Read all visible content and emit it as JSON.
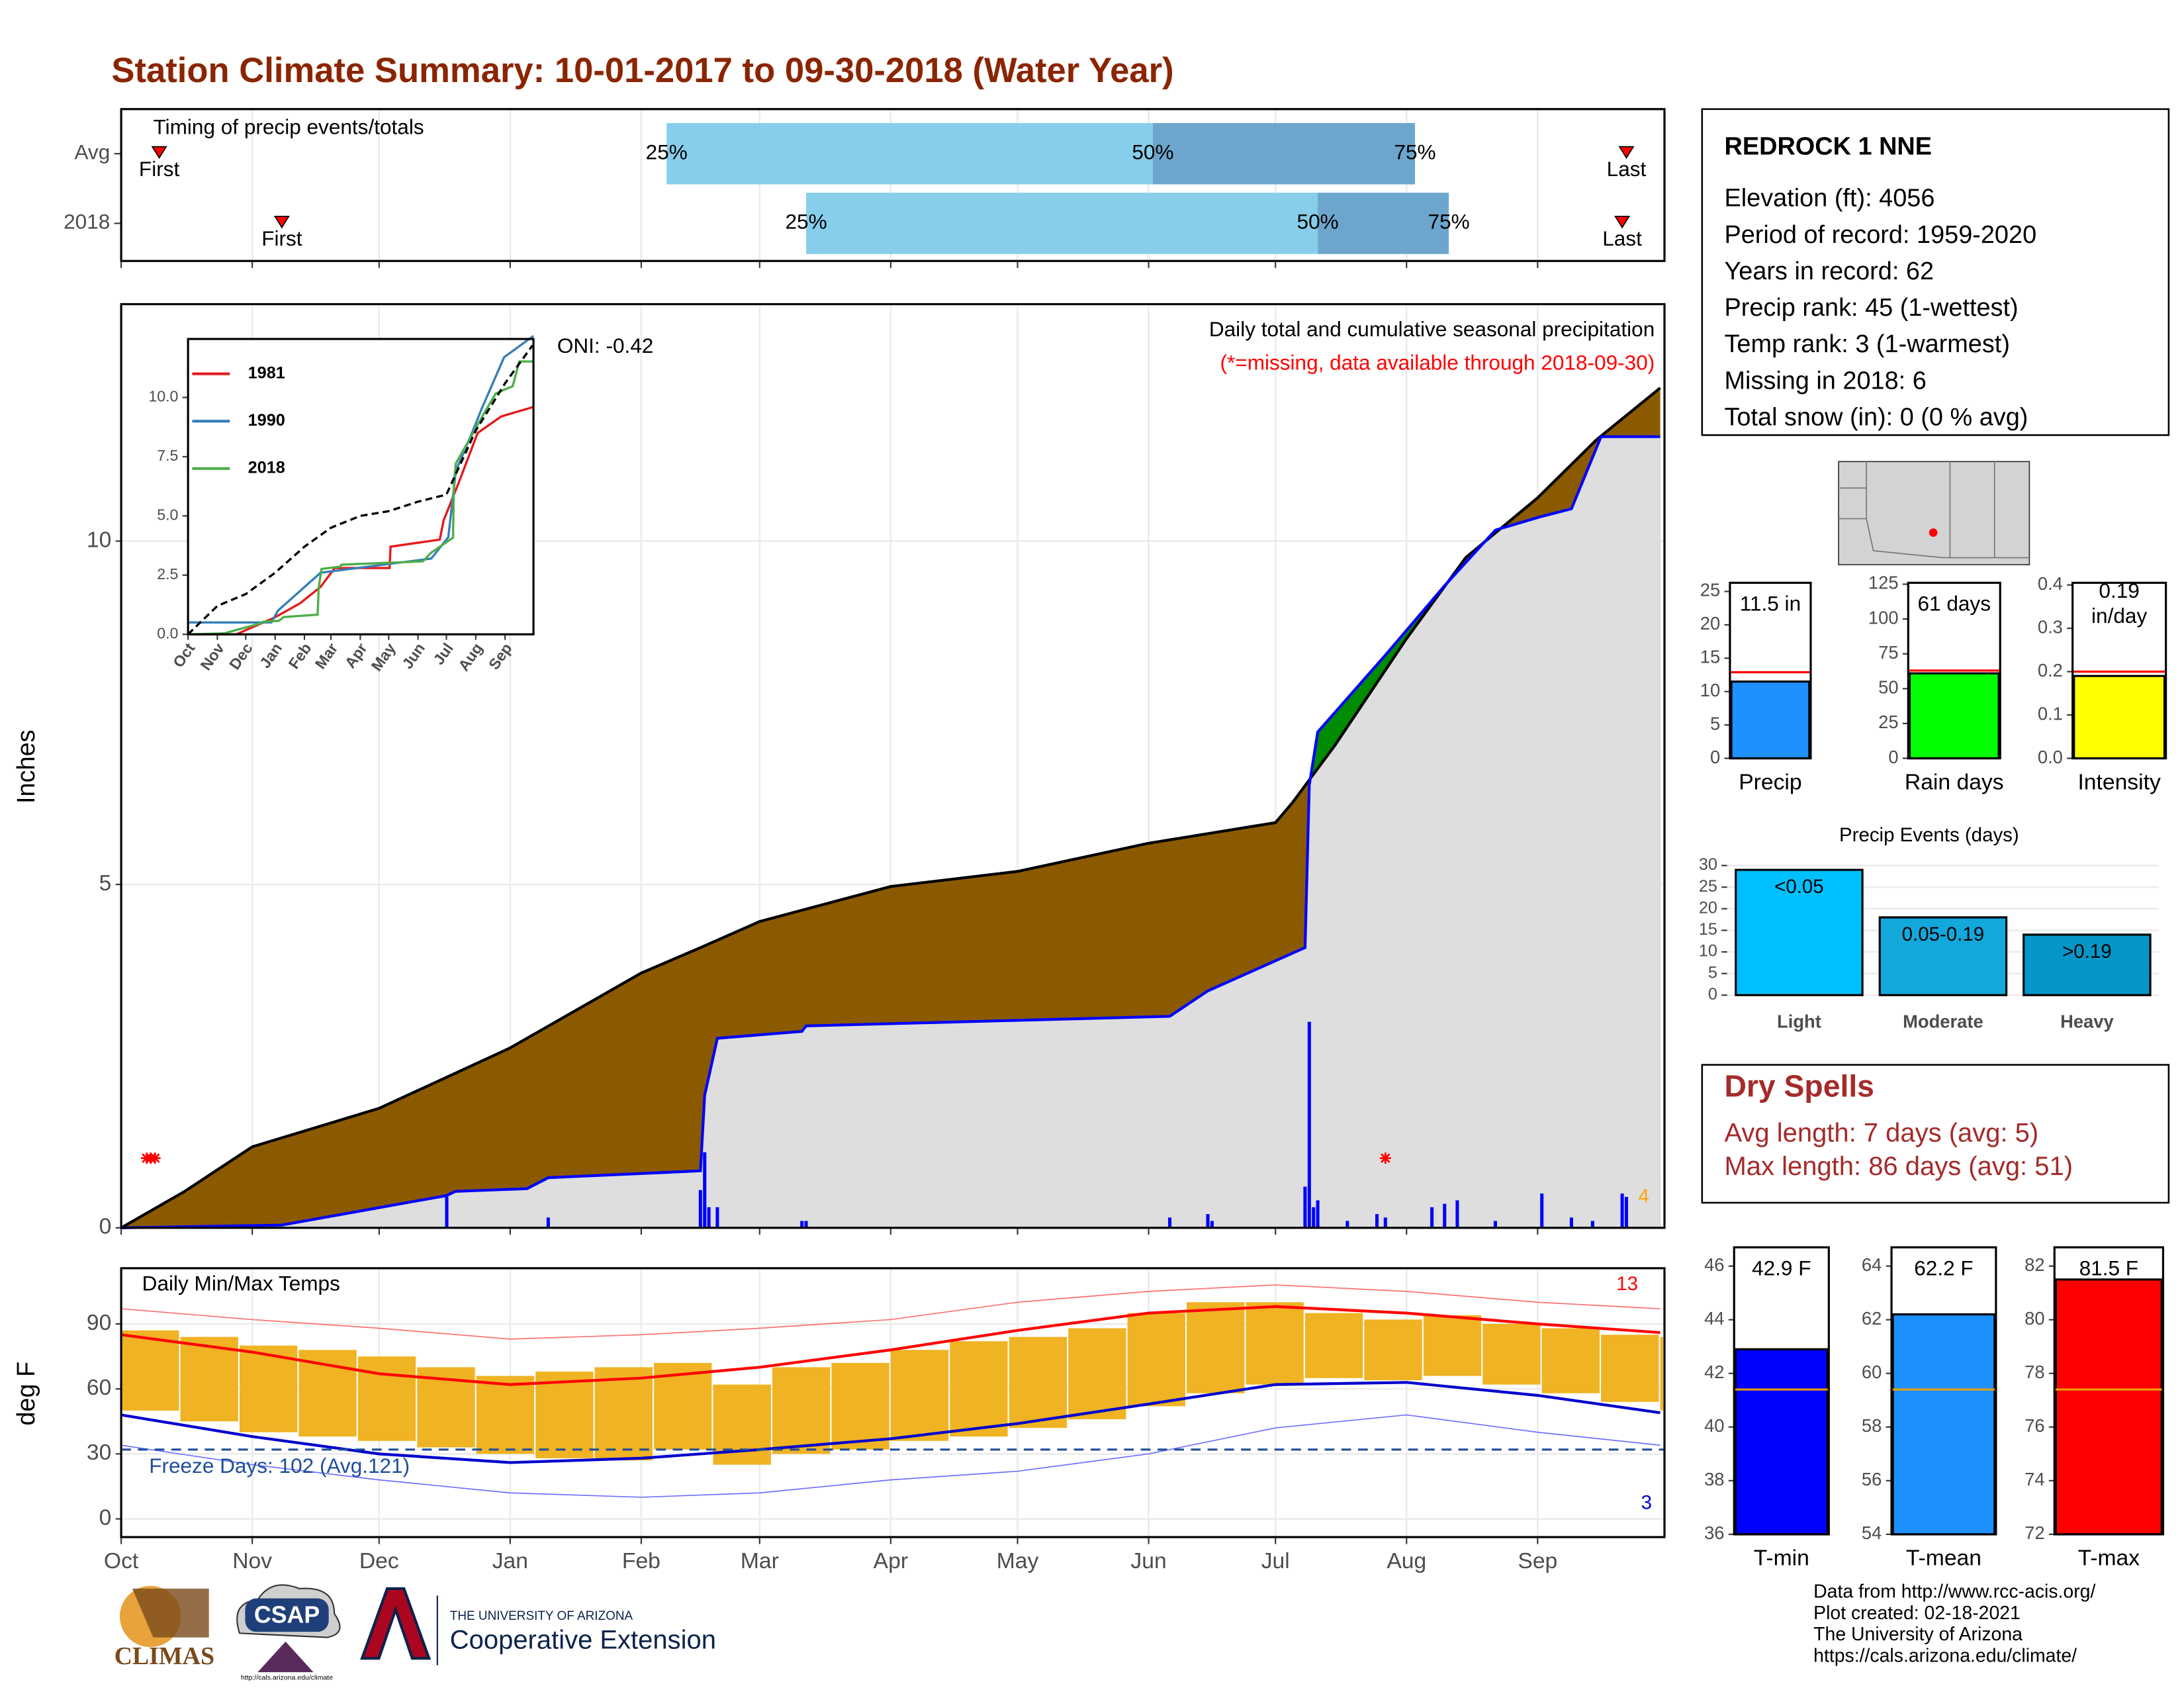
{
  "title": "Station Climate Summary: 10-01-2017 to 09-30-2018 (Water Year)",
  "station": {
    "name": "REDROCK 1 NNE",
    "lines": [
      "Elevation (ft): 4056",
      "Period of record: 1959-2020",
      "Years in record: 62",
      "Precip rank: 45 (1-wettest)",
      "Temp rank: 3 (1-warmest)",
      "Missing in 2018: 6",
      "Total snow (in): 0 (0 % avg)"
    ]
  },
  "dry_spells": {
    "title": "Dry Spells",
    "lines": [
      "Avg length: 7 days (avg: 5)",
      "Max length: 86 days (avg: 51)"
    ]
  },
  "footer": {
    "lines": [
      "Data from http://www.rcc-acis.org/",
      "Plot created: 02-18-2021",
      "The University of Arizona",
      "https://cals.arizona.edu/climate/"
    ]
  },
  "logos": {
    "climas": "CLIMAS",
    "csap": "CSAP",
    "csap_url": "http://cals.arizona.edu/climate",
    "ua": "THE UNIVERSITY OF ARIZONA",
    "coop": "Cooperative Extension"
  },
  "chart_data": [
    {
      "type": "timing",
      "title": "Timing of precip events/totals",
      "categories": [
        "Avg",
        "2018"
      ],
      "series": [
        {
          "name": "First",
          "values": [
            9,
            38
          ]
        },
        {
          "name": "25%",
          "values": [
            129,
            162
          ]
        },
        {
          "name": "50%",
          "values": [
            244,
            283
          ]
        },
        {
          "name": "75%",
          "values": [
            306,
            314
          ]
        },
        {
          "name": "Last",
          "values": [
            356,
            355
          ]
        }
      ],
      "colors": [
        "#87ceeb",
        "#6ca6cd"
      ],
      "xlim": [
        0,
        365
      ],
      "xticks": [
        0,
        31,
        61,
        92,
        123,
        151,
        182,
        212,
        243,
        273,
        304,
        335
      ],
      "grid": true
    },
    {
      "type": "cumulative",
      "title": "Daily total and cumulative seasonal precipitation",
      "subtitle": "(*=missing, data available through 2018-09-30)",
      "ylabel": "Inches",
      "annotations": [
        "ONI: -0.42",
        "4"
      ],
      "average": {
        "color": "#8b5a00",
        "x": [
          0,
          15,
          31,
          61,
          92,
          123,
          137,
          151,
          182,
          212,
          243,
          273,
          277,
          287,
          304,
          318,
          335,
          349,
          364
        ],
        "values": [
          0,
          0.53,
          1.18,
          1.74,
          2.62,
          3.71,
          4.08,
          4.46,
          4.97,
          5.19,
          5.6,
          5.9,
          6.19,
          7.02,
          8.58,
          9.76,
          10.63,
          11.48,
          12.23
        ]
      },
      "year": {
        "color": "#0000ff",
        "fill": "#dedede",
        "above_color": "#008b00",
        "x": [
          0,
          38,
          77,
          79,
          96,
          101,
          137,
          138,
          141,
          161,
          162,
          248,
          257,
          280,
          281,
          283,
          299,
          313,
          325,
          336,
          343,
          350,
          364
        ],
        "values": [
          0,
          0.04,
          0.47,
          0.53,
          0.57,
          0.73,
          0.83,
          1.93,
          2.76,
          2.86,
          2.94,
          3.08,
          3.45,
          4.08,
          6.45,
          7.22,
          8.34,
          9.35,
          10.16,
          10.36,
          10.47,
          11.52,
          11.52
        ]
      },
      "daily": {
        "color": "#0000ff",
        "x": [
          77,
          101,
          137,
          138,
          139,
          141,
          161,
          162,
          248,
          257,
          258,
          280,
          281,
          282,
          283,
          290,
          297,
          299,
          310,
          313,
          316,
          325,
          336,
          343,
          348,
          355,
          356
        ],
        "values": [
          0.45,
          0.15,
          0.55,
          1.1,
          0.3,
          0.3,
          0.1,
          0.1,
          0.15,
          0.2,
          0.1,
          0.6,
          3.0,
          0.3,
          0.4,
          0.1,
          0.2,
          0.15,
          0.3,
          0.35,
          0.4,
          0.1,
          0.5,
          0.15,
          0.1,
          0.5,
          0.45
        ]
      },
      "missing_x": [
        6,
        7,
        8,
        299
      ],
      "xlim": [
        0,
        365
      ],
      "xticks": [
        0,
        31,
        61,
        92,
        123,
        151,
        182,
        212,
        243,
        273,
        304,
        335
      ],
      "ylim": [
        0,
        13.45
      ],
      "yticks": [
        0,
        5,
        10
      ],
      "grid": true
    },
    {
      "type": "line",
      "xlim": [
        0,
        365
      ],
      "ylim": [
        0,
        12.47
      ],
      "xticks": [
        {
          "value": 0,
          "label": "Oct"
        },
        {
          "value": 31,
          "label": "Nov"
        },
        {
          "value": 61,
          "label": "Dec"
        },
        {
          "value": 92,
          "label": "Jan"
        },
        {
          "value": 123,
          "label": "Feb"
        },
        {
          "value": 151,
          "label": "Mar"
        },
        {
          "value": 182,
          "label": "Apr"
        },
        {
          "value": 212,
          "label": "May"
        },
        {
          "value": 243,
          "label": "Jun"
        },
        {
          "value": 273,
          "label": "Jul"
        },
        {
          "value": 304,
          "label": "Aug"
        },
        {
          "value": 335,
          "label": "Sep"
        }
      ],
      "yticks": [
        {
          "value": 0,
          "label": "0.0"
        },
        2.5,
        {
          "value": 5,
          "label": "5.0"
        },
        7.5,
        {
          "value": 10,
          "label": "10.0"
        }
      ],
      "series": [
        {
          "name": "1981",
          "color": "#e41a1c",
          "x": [
            0,
            51,
            91,
            118,
            140,
            155,
            213,
            214,
            266,
            270,
            287,
            306,
            331,
            365
          ],
          "values": [
            0,
            0,
            0.7,
            1.3,
            2.0,
            2.8,
            2.8,
            3.7,
            4.0,
            4.8,
            6.5,
            8.5,
            9.2,
            9.6
          ]
        },
        {
          "name": "1990",
          "color": "#377eb8",
          "x": [
            0,
            88,
            95,
            140,
            257,
            275,
            283,
            300,
            310,
            334,
            365
          ],
          "values": [
            0.5,
            0.5,
            1.0,
            2.6,
            3.2,
            4.1,
            6.9,
            8.5,
            9.5,
            11.7,
            12.6
          ]
        },
        {
          "name": "2018",
          "color": "#4daf4a",
          "x": [
            0,
            38,
            77,
            79,
            96,
            101,
            137,
            138,
            141,
            161,
            162,
            248,
            257,
            280,
            281,
            283,
            299,
            313,
            325,
            336,
            343,
            350,
            364
          ],
          "values": [
            0,
            0.04,
            0.47,
            0.53,
            0.57,
            0.73,
            0.83,
            1.93,
            2.76,
            2.86,
            2.94,
            3.08,
            3.45,
            4.08,
            6.45,
            7.22,
            8.34,
            9.35,
            10.16,
            10.36,
            10.47,
            11.52,
            11.52
          ]
        },
        {
          "color": "#000000",
          "dash": true,
          "x": [
            0,
            31,
            61,
            92,
            123,
            151,
            182,
            212,
            243,
            273,
            304,
            335,
            364
          ],
          "values": [
            0,
            1.2,
            1.7,
            2.6,
            3.7,
            4.5,
            5.0,
            5.2,
            5.6,
            5.9,
            8.6,
            10.6,
            12.2
          ]
        }
      ]
    },
    {
      "type": "temperature",
      "title": "Daily Min/Max Temps",
      "ylabel": "deg F",
      "annotations": [
        "13",
        "3",
        "Freeze Days: 102 (Avg.121)"
      ],
      "freeze": 32,
      "xlim": [
        0,
        365
      ],
      "ylim": [
        -8.4,
        115.7
      ],
      "yticks": [
        0,
        30,
        60,
        90
      ],
      "grid": true,
      "xticks": [
        {
          "value": 0,
          "label": "Oct"
        },
        {
          "value": 31,
          "label": "Nov"
        },
        {
          "value": 61,
          "label": "Dec"
        },
        {
          "value": 92,
          "label": "Jan"
        },
        {
          "value": 123,
          "label": "Feb"
        },
        {
          "value": 151,
          "label": "Mar"
        },
        {
          "value": 182,
          "label": "Apr"
        },
        {
          "value": 212,
          "label": "May"
        },
        {
          "value": 243,
          "label": "Jun"
        },
        {
          "value": 273,
          "label": "Jul"
        },
        {
          "value": 304,
          "label": "Aug"
        },
        {
          "value": 335,
          "label": "Sep"
        }
      ],
      "x_daily": [
        0,
        14,
        28,
        42,
        56,
        70,
        84,
        98,
        112,
        126,
        140,
        154,
        168,
        182,
        196,
        210,
        224,
        238,
        252,
        266,
        280,
        294,
        308,
        322,
        336,
        350,
        364
      ],
      "daily_max": [
        87,
        84,
        80,
        78,
        75,
        70,
        66,
        68,
        70,
        72,
        62,
        70,
        72,
        78,
        82,
        84,
        88,
        95,
        100,
        100,
        95,
        92,
        94,
        90,
        88,
        85,
        84
      ],
      "daily_min": [
        50,
        45,
        40,
        38,
        36,
        33,
        30,
        28,
        27,
        32,
        25,
        30,
        32,
        36,
        38,
        42,
        46,
        52,
        58,
        62,
        65,
        64,
        66,
        62,
        58,
        54,
        50
      ],
      "bar_color": "#f0b323",
      "x_monthly": [
        0,
        31,
        61,
        92,
        123,
        151,
        182,
        212,
        243,
        273,
        304,
        335,
        364
      ],
      "avg_max": [
        85,
        77,
        67,
        62,
        65,
        70,
        78,
        87,
        95,
        98,
        95,
        90,
        86
      ],
      "avg_min": [
        48,
        38,
        30,
        26,
        28,
        32,
        37,
        44,
        53,
        62,
        63,
        57,
        49
      ],
      "record_max": [
        97,
        92,
        88,
        83,
        85,
        88,
        92,
        100,
        105,
        108,
        105,
        100,
        97
      ],
      "record_min": [
        34,
        25,
        18,
        12,
        10,
        12,
        18,
        22,
        30,
        42,
        48,
        40,
        34
      ]
    },
    {
      "type": "single_bar",
      "xlabel": "Precip",
      "values": [
        11.5
      ],
      "value_labels": [
        "11.5 in"
      ],
      "average": 12.9,
      "color": "#1e90ff",
      "ylim": [
        0,
        26.3
      ],
      "yticks": [
        0,
        5,
        10,
        15,
        20,
        25
      ]
    },
    {
      "type": "single_bar",
      "xlabel": "Rain days",
      "values": [
        61
      ],
      "value_labels": [
        "61 days"
      ],
      "average": 63,
      "color": "#00ff00",
      "ylim": [
        0,
        126
      ],
      "yticks": [
        0,
        25,
        50,
        75,
        100,
        125
      ]
    },
    {
      "type": "single_bar",
      "xlabel": "Intensity",
      "values": [
        0.19
      ],
      "value_labels": [
        "0.19\nin/day"
      ],
      "average": 0.2,
      "color": "#ffff00",
      "ylim": [
        0,
        0.405
      ],
      "yticks": [
        {
          "value": 0,
          "label": "0.0"
        },
        0.1,
        0.2,
        0.3,
        0.4
      ]
    },
    {
      "type": "bar",
      "title": "Precip Events (days)",
      "categories": [
        "Light",
        "Moderate",
        "Heavy"
      ],
      "values": [
        29,
        18,
        14
      ],
      "bar_labels": [
        "<0.05",
        "0.05-0.19",
        ">0.19"
      ],
      "colors": [
        "#00bfff",
        "#12a8dc",
        "#0596c8"
      ],
      "ylim": [
        -1.3,
        31.6
      ],
      "yticks": [
        0,
        5,
        10,
        15,
        20,
        25,
        30
      ],
      "grid": true
    },
    {
      "type": "single_bar",
      "xlabel": "T-min",
      "values": [
        42.9
      ],
      "value_labels": [
        "42.9 F"
      ],
      "average": 41.4,
      "color": "#0000ff",
      "ylim": [
        36,
        46.7
      ],
      "yticks": [
        36,
        38,
        40,
        42,
        44,
        46
      ]
    },
    {
      "type": "single_bar",
      "xlabel": "T-mean",
      "values": [
        62.2
      ],
      "value_labels": [
        "62.2 F"
      ],
      "average": 59.4,
      "color": "#1e90ff",
      "ylim": [
        54,
        64.7
      ],
      "yticks": [
        54,
        56,
        58,
        60,
        62,
        64
      ]
    },
    {
      "type": "single_bar",
      "xlabel": "T-max",
      "values": [
        81.5
      ],
      "value_labels": [
        "81.5 F"
      ],
      "average": 77.4,
      "color": "#ff0000",
      "ylim": [
        72,
        82.7
      ],
      "yticks": [
        72,
        74,
        76,
        78,
        80,
        82
      ]
    }
  ]
}
